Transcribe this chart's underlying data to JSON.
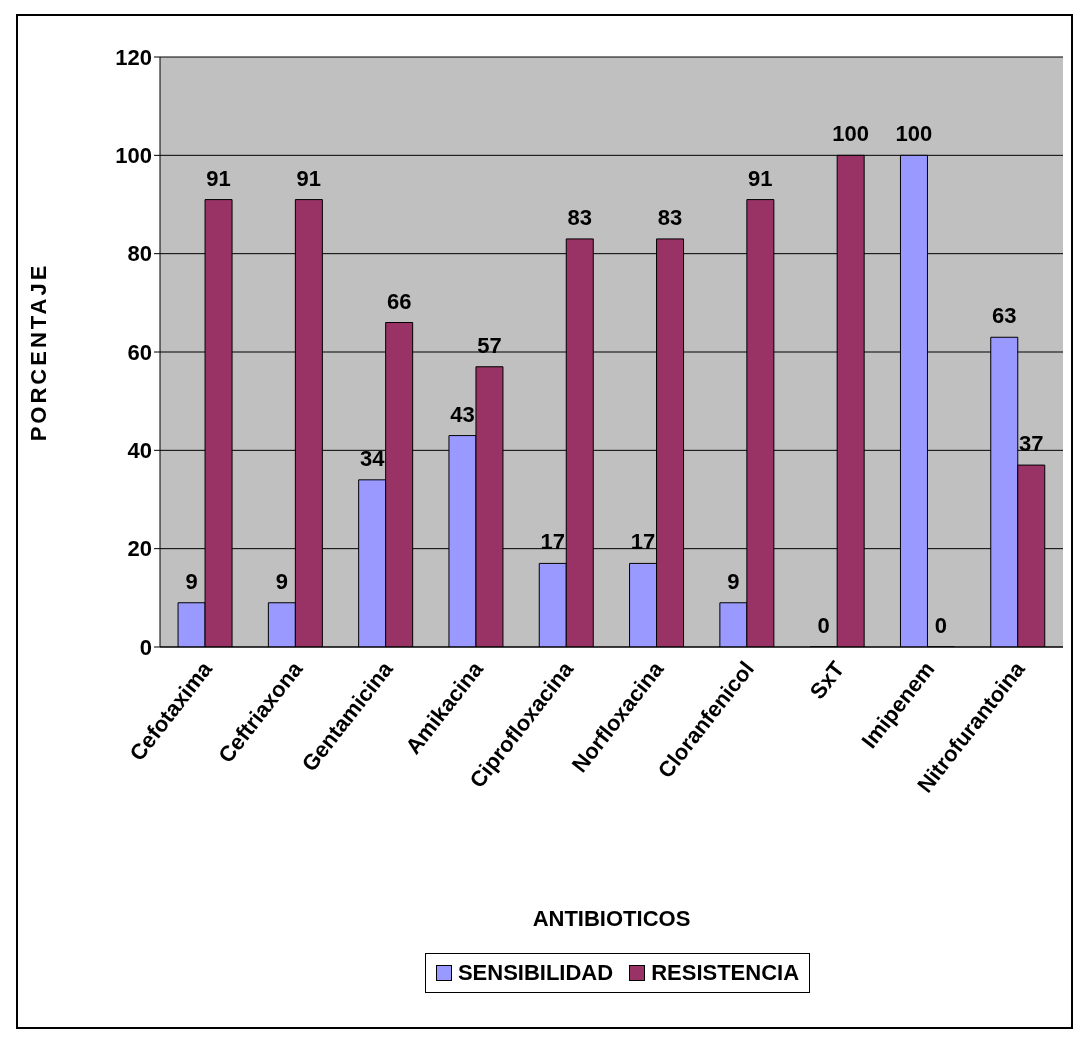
{
  "chart_data": {
    "type": "bar",
    "xlabel": "ANTIBIOTICOS",
    "ylabel": "PORCENTAJE",
    "categories": [
      "Cefotaxima",
      "Ceftriaxona",
      "Gentamicina",
      "Amikacina",
      "Ciprofloxacina",
      "Norfloxacina",
      "Cloranfenicol",
      "SxT",
      "Imipenem",
      "Nitrofurantoina"
    ],
    "series": [
      {
        "name": "SENSIBILIDAD",
        "color": "#9999ff",
        "values": [
          9,
          9,
          34,
          43,
          17,
          17,
          9,
          0,
          100,
          63
        ]
      },
      {
        "name": "RESISTENCIA",
        "color": "#993366",
        "values": [
          91,
          91,
          66,
          57,
          83,
          83,
          91,
          100,
          0,
          37
        ]
      }
    ],
    "ylim": [
      0,
      120
    ],
    "yticks": [
      0,
      20,
      40,
      60,
      80,
      100,
      120
    ],
    "grid": "y",
    "legend": "bottom",
    "data_labels": true
  }
}
